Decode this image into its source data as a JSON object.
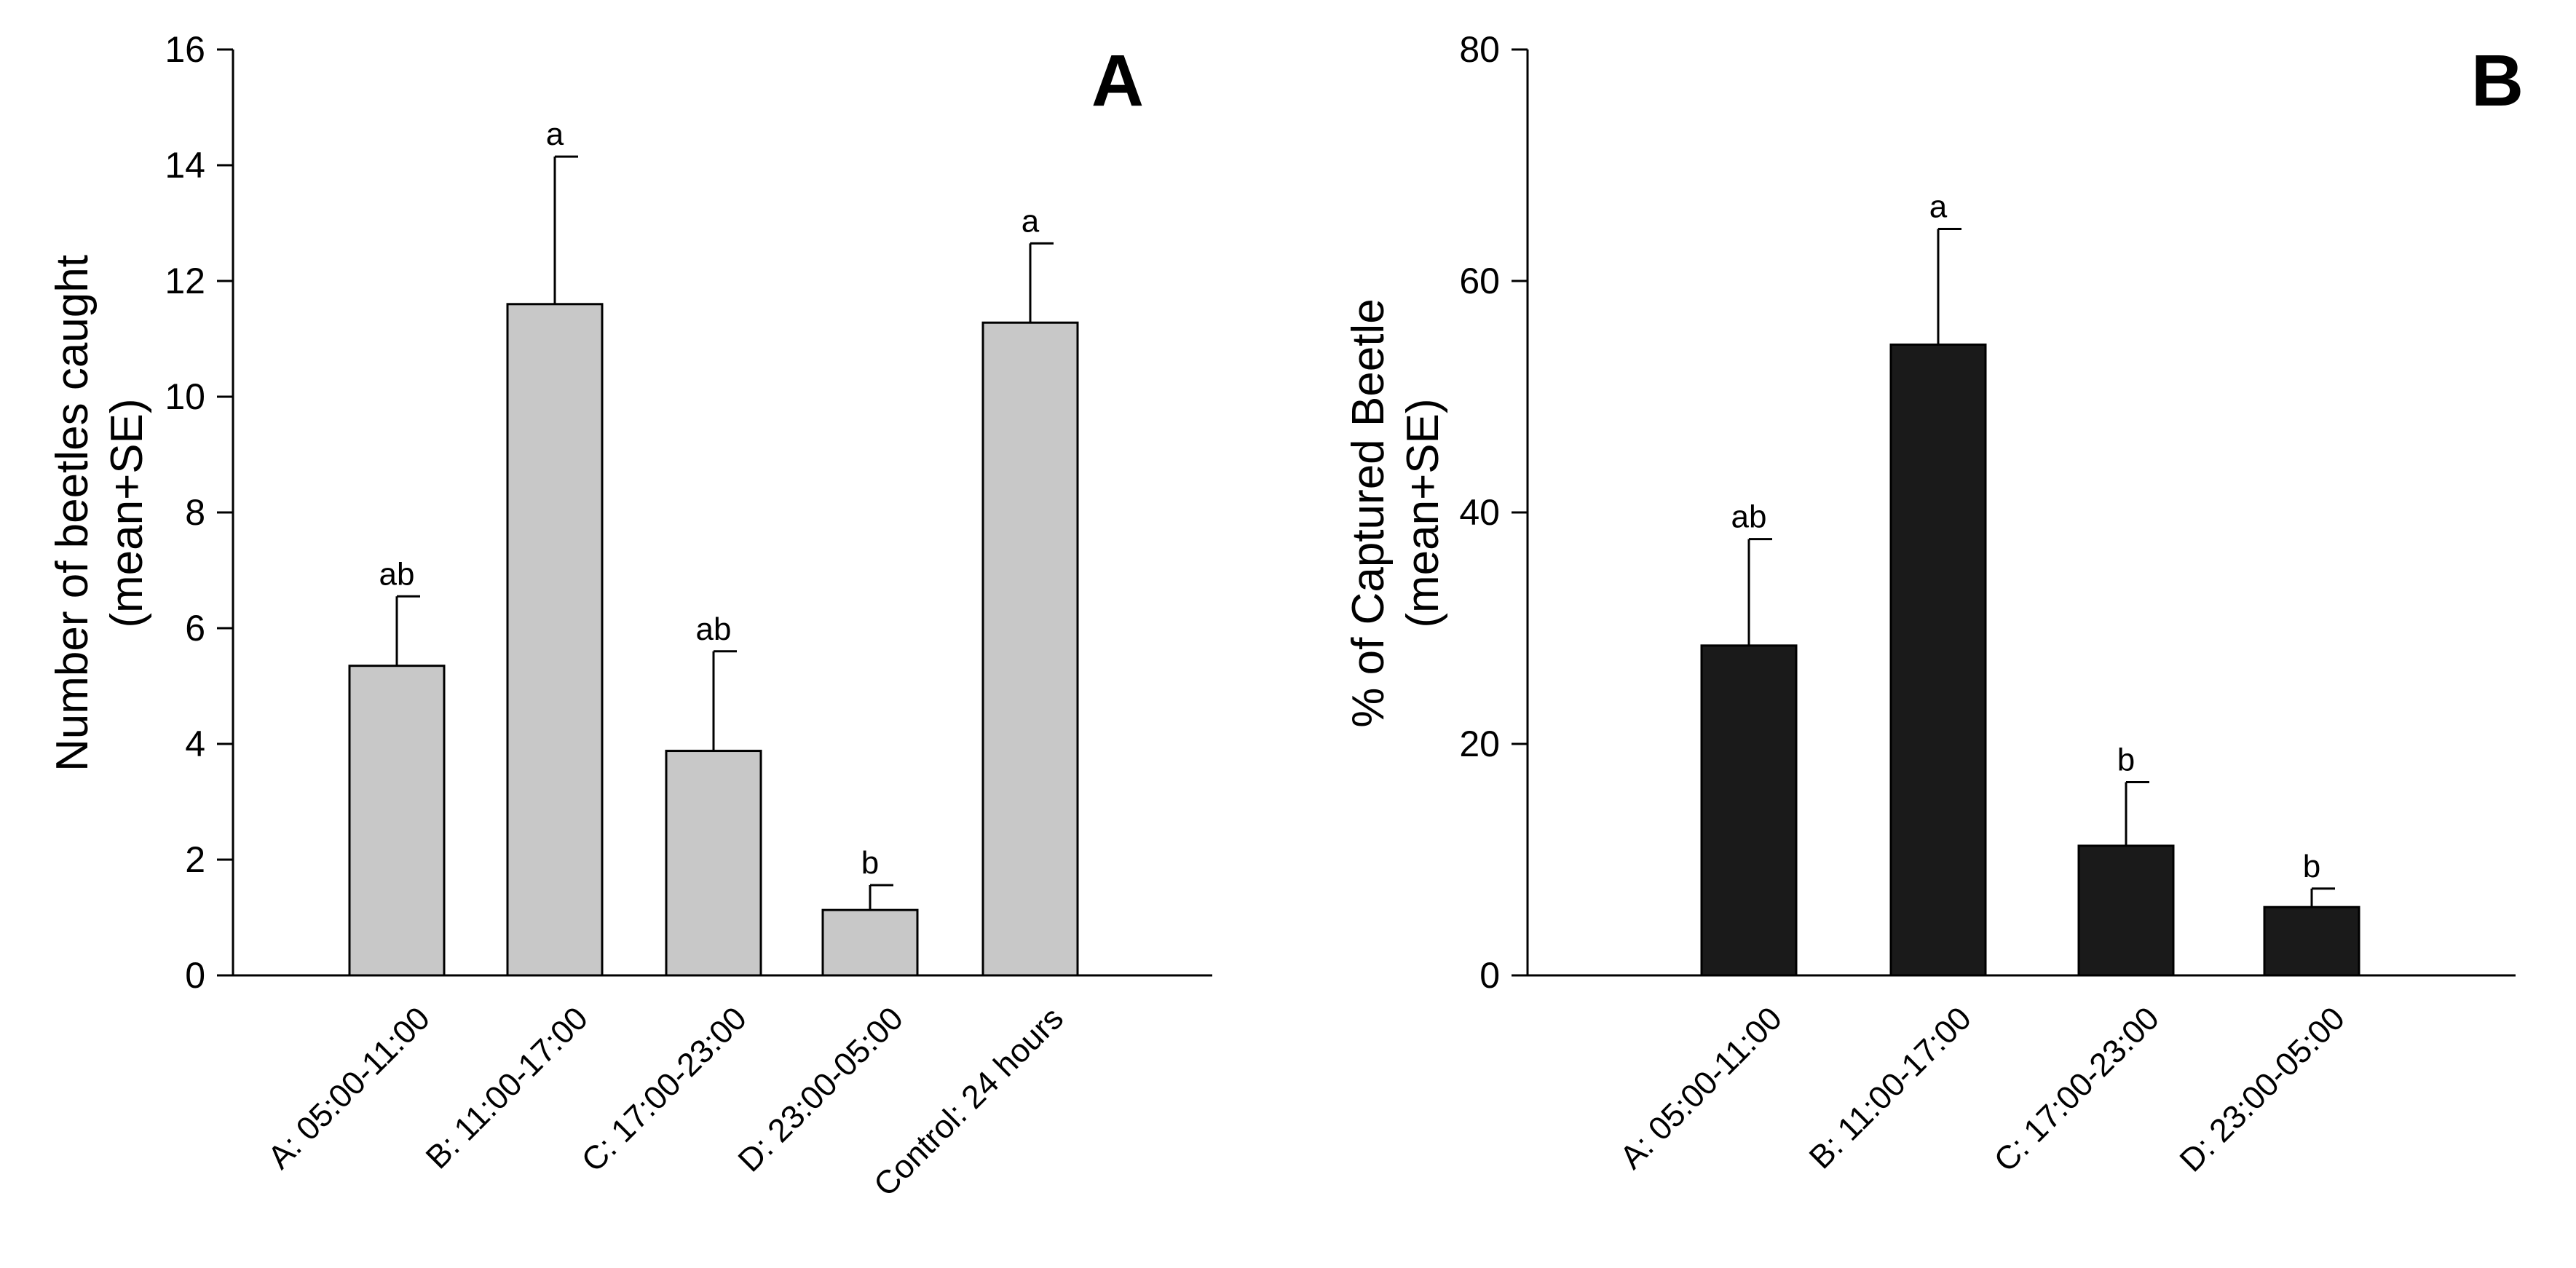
{
  "chart_data": [
    {
      "panel": "A",
      "type": "bar",
      "categories": [
        "A: 05:00-11:00",
        "B: 11:00-17:00",
        "C: 17:00-23:00",
        "D: 23:00-05:00",
        "Control: 24 hours"
      ],
      "values": [
        5.35,
        11.6,
        3.88,
        1.13,
        11.28
      ],
      "errors": [
        1.2,
        2.55,
        1.72,
        0.43,
        1.37
      ],
      "significance": [
        "ab",
        "a",
        "ab",
        "b",
        "a"
      ],
      "ylabel_line1": "Number of beetles caught",
      "ylabel_line2": "(mean+SE)",
      "ylim": [
        0,
        16
      ],
      "yticks": [
        0,
        2,
        4,
        6,
        8,
        10,
        12,
        14,
        16
      ],
      "bar_color": "#c8c8c8"
    },
    {
      "panel": "B",
      "type": "bar",
      "categories": [
        "A: 05:00-11:00",
        "B: 11:00-17:00",
        "C: 17:00-23:00",
        "D: 23:00-05:00"
      ],
      "values": [
        28.5,
        54.5,
        11.2,
        5.9
      ],
      "errors": [
        9.2,
        10.0,
        5.5,
        1.6
      ],
      "significance": [
        "ab",
        "a",
        "b",
        "b"
      ],
      "ylabel_line1": "% of Captured Beetle",
      "ylabel_line2": "(mean+SE)",
      "ylim": [
        0,
        80
      ],
      "yticks": [
        0,
        20,
        40,
        60,
        80
      ],
      "bar_color": "#1a1a1a"
    }
  ]
}
